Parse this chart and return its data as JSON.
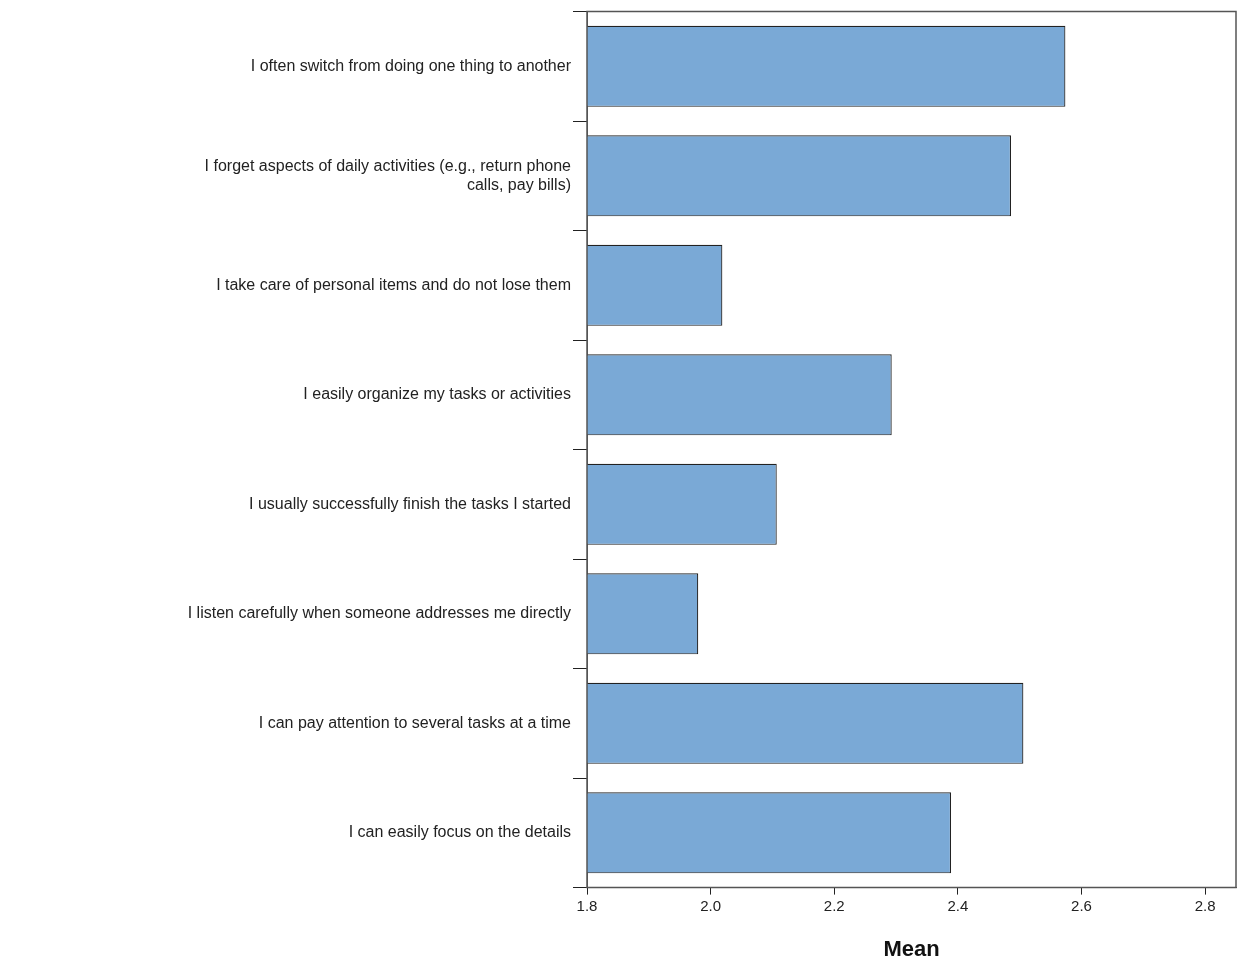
{
  "chart_data": {
    "type": "bar",
    "orientation": "horizontal",
    "xlabel": "Mean",
    "categories": [
      "I often switch from doing one thing to another",
      "I forget aspects of daily activities (e.g., return phone calls, pay bills)",
      "I take care of personal items and do not lose them",
      "I easily organize my tasks or activities",
      "I usually successfully finish the tasks I started",
      "I listen carefully when someone addresses me directly",
      "I can pay attention to several tasks at a time",
      "I can easily focus on the details"
    ],
    "values": [
      2.574,
      2.486,
      2.019,
      2.293,
      2.107,
      1.98,
      2.506,
      2.389
    ],
    "color": "#7aa9d6",
    "xlim": [
      1.8,
      2.85
    ],
    "xticks": [
      {
        "value": 1.8,
        "label": "1.8"
      },
      {
        "value": 2.0,
        "label": "2.0"
      },
      {
        "value": 2.2,
        "label": "2.2"
      },
      {
        "value": 2.4,
        "label": "2.4"
      },
      {
        "value": 2.6,
        "label": "2.6"
      },
      {
        "value": 2.8,
        "label": "2.8"
      }
    ],
    "grid": false,
    "legend": false
  }
}
